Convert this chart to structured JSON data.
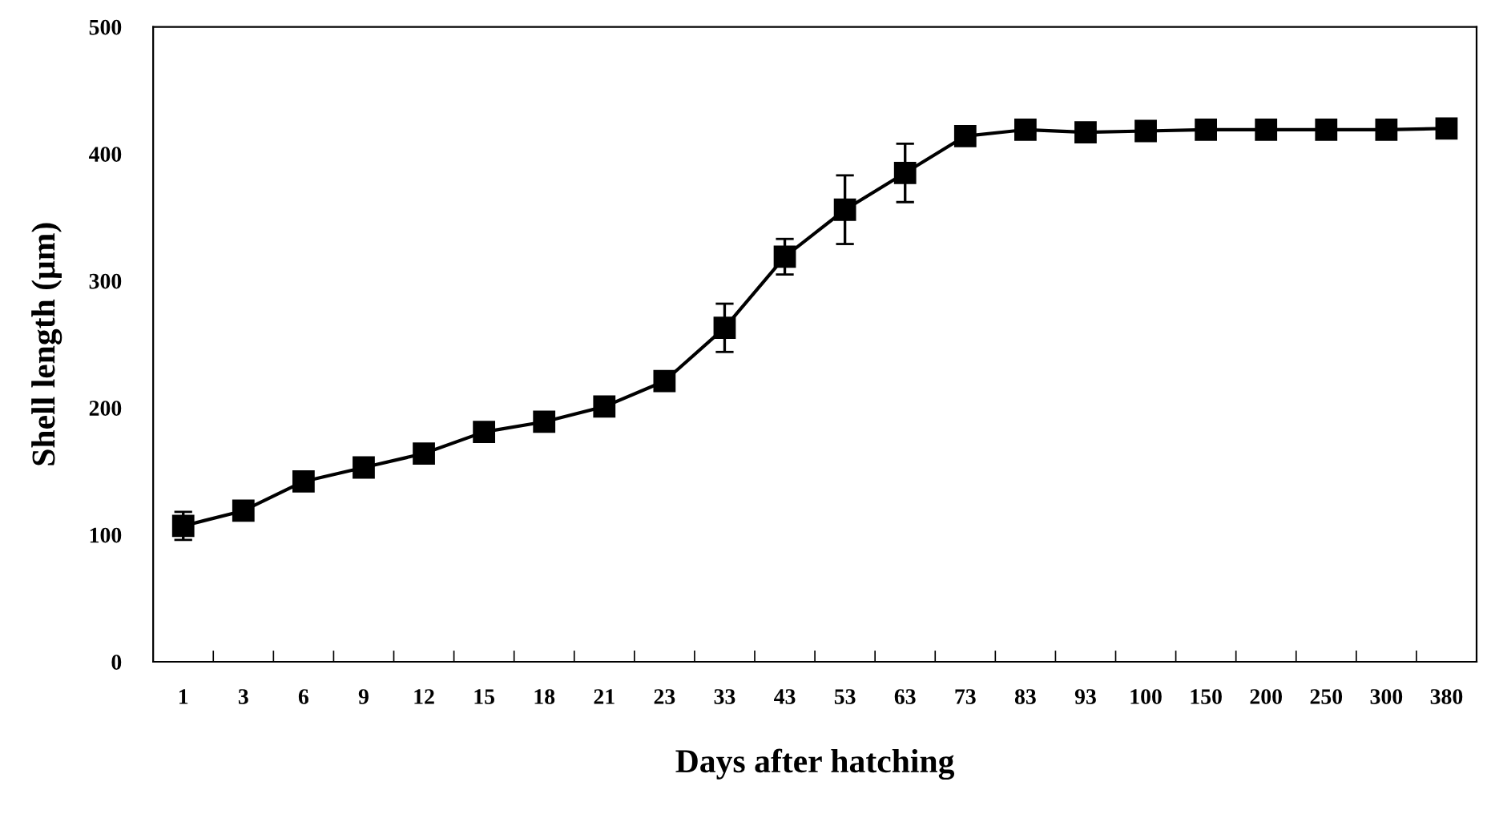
{
  "chart_data": {
    "type": "line",
    "xlabel": "Days after hatching",
    "ylabel": "Shell length (μm)",
    "categories": [
      "1",
      "3",
      "6",
      "9",
      "12",
      "15",
      "18",
      "21",
      "23",
      "33",
      "43",
      "53",
      "63",
      "73",
      "83",
      "93",
      "100",
      "150",
      "200",
      "250",
      "300",
      "380"
    ],
    "series": [
      {
        "color": "#000000",
        "values": [
          107,
          119,
          142,
          153,
          164,
          181,
          189,
          201,
          221,
          263,
          319,
          356,
          385,
          414,
          419,
          417,
          418,
          419,
          419,
          419,
          419,
          420
        ],
        "errors": [
          11,
          null,
          null,
          null,
          null,
          null,
          null,
          5,
          null,
          19,
          14,
          27,
          23,
          6,
          null,
          null,
          null,
          null,
          null,
          null,
          null,
          null
        ]
      }
    ],
    "ylim": [
      0,
      500
    ],
    "yticks": [
      0,
      100,
      200,
      300,
      400,
      500
    ],
    "marker": "square",
    "line_style": "solid",
    "grid": false,
    "legend": false
  }
}
